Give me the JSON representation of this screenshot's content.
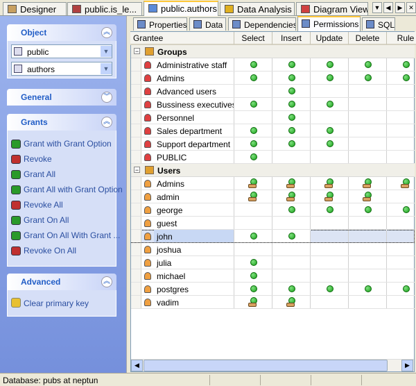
{
  "tabs": [
    "Designer",
    "public.is_le...",
    "public.authors",
    "Data Analysis",
    "Diagram View"
  ],
  "left_panel": {
    "object": {
      "title": "Object",
      "schema": "public",
      "table": "authors"
    },
    "general": {
      "title": "General"
    },
    "grants": {
      "title": "Grants",
      "items": [
        "Grant with Grant Option",
        "Revoke",
        "Grant All",
        "Grant All with Grant Option",
        "Revoke All",
        "Grant On All",
        "Grant On All With Grant ...",
        "Revoke On All"
      ]
    },
    "advanced": {
      "title": "Advanced",
      "items": [
        "Clear primary key"
      ]
    }
  },
  "subtabs": [
    "Properties",
    "Data",
    "Dependencies",
    "Permissions",
    "SQL"
  ],
  "grid": {
    "columns": [
      "Grantee",
      "Select",
      "Insert",
      "Update",
      "Delete",
      "Rule"
    ],
    "groups": [
      {
        "title": "Groups",
        "rows": [
          "Administrative staff",
          "Admins",
          "Advanced users",
          "Bussiness executives",
          "Personnel",
          "Sales department",
          "Support department",
          "PUBLIC"
        ]
      },
      {
        "title": "Users",
        "rows": [
          "Admins",
          "admin",
          "george",
          "guest",
          "john",
          "joshua",
          "julia",
          "michael",
          "postgres",
          "vadim"
        ]
      }
    ]
  },
  "status": "Database: pubs at neptun"
}
